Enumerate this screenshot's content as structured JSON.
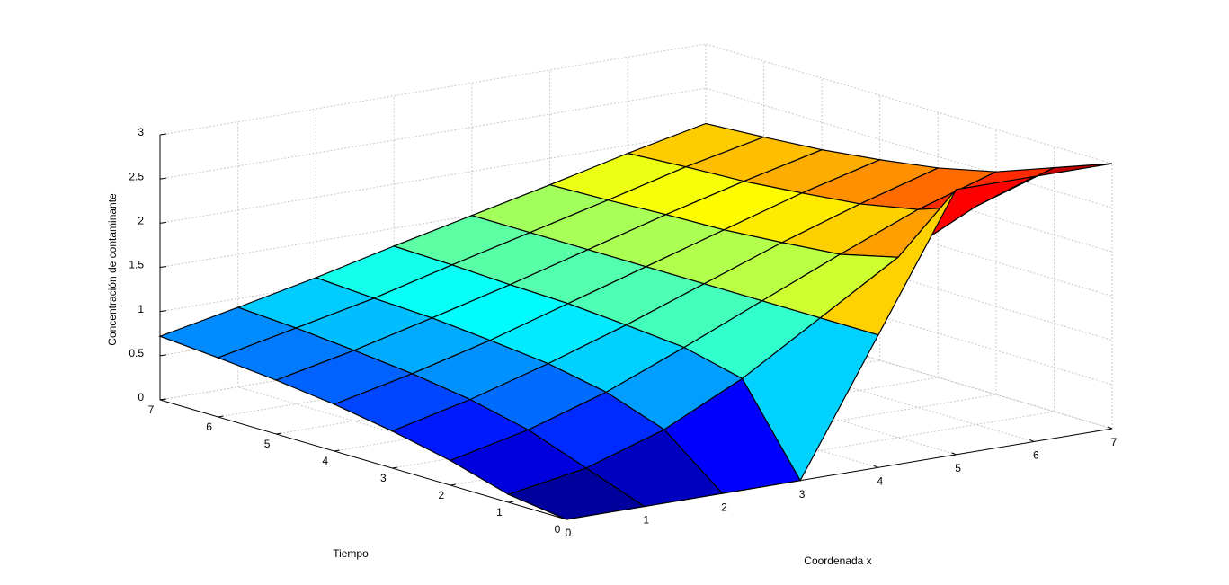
{
  "chart_data": {
    "type": "surface",
    "xlabel": "Coordenada x",
    "ylabel": "Tiempo",
    "zlabel": "Concentración de contaminante",
    "x": [
      0,
      1,
      2,
      3,
      4,
      5,
      6,
      7
    ],
    "y": [
      0,
      1,
      2,
      3,
      4,
      5,
      6,
      7
    ],
    "z": [
      [
        0,
        0,
        0,
        0,
        1.5,
        3,
        3,
        3
      ],
      [
        0.09,
        0.24,
        0.53,
        0.96,
        1.5,
        2.04,
        2.47,
        2.76
      ],
      [
        0.28,
        0.48,
        0.76,
        1.12,
        1.5,
        1.88,
        2.24,
        2.52
      ],
      [
        0.42,
        0.63,
        0.89,
        1.18,
        1.5,
        1.82,
        2.11,
        2.37
      ],
      [
        0.53,
        0.73,
        0.96,
        1.23,
        1.5,
        1.77,
        2.04,
        2.27
      ],
      [
        0.61,
        0.8,
        1.02,
        1.25,
        1.5,
        1.75,
        1.98,
        2.19
      ],
      [
        0.67,
        0.86,
        1.05,
        1.28,
        1.5,
        1.72,
        1.95,
        2.14
      ],
      [
        0.72,
        0.9,
        1.09,
        1.3,
        1.5,
        1.7,
        1.91,
        2.1
      ]
    ],
    "colormap": "jet",
    "xlim": [
      0,
      7
    ],
    "ylim": [
      0,
      7
    ],
    "zlim": [
      0,
      3
    ],
    "xticks": [
      0,
      1,
      2,
      3,
      4,
      5,
      6,
      7
    ],
    "yticks": [
      0,
      1,
      2,
      3,
      4,
      5,
      6,
      7
    ],
    "zticks": [
      0,
      0.5,
      1,
      1.5,
      2,
      2.5,
      3
    ],
    "grid": true
  }
}
